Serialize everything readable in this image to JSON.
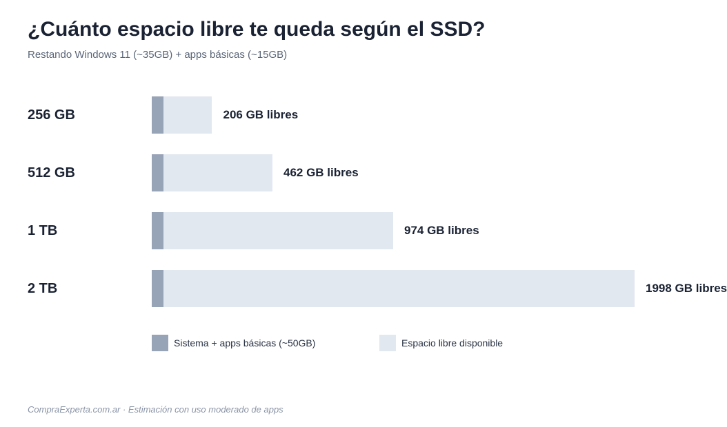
{
  "chart_data": {
    "type": "bar",
    "orientation": "horizontal",
    "stacked": true,
    "title": "¿Cuánto espacio libre te queda según el SSD?",
    "subtitle": "Restando Windows 11 (~35GB) + apps básicas (~15GB)",
    "categories": [
      "256 GB",
      "512 GB",
      "1 TB",
      "2 TB"
    ],
    "series": [
      {
        "name": "Sistema + apps básicas (~50GB)",
        "values": [
          50,
          50,
          50,
          50
        ],
        "color": "#97a3b6"
      },
      {
        "name": "Espacio libre disponible",
        "values": [
          206,
          462,
          974,
          1998
        ],
        "color": "#e2e8f0"
      }
    ],
    "value_labels": [
      "206 GB libres",
      "462 GB libres",
      "974 GB libres",
      "1998 GB libres"
    ],
    "xlim": [
      0,
      2048
    ],
    "grid": false,
    "legend_position": "bottom"
  },
  "footer": {
    "note": "CompraExperta.com.ar · Estimación con uso moderado de apps"
  }
}
